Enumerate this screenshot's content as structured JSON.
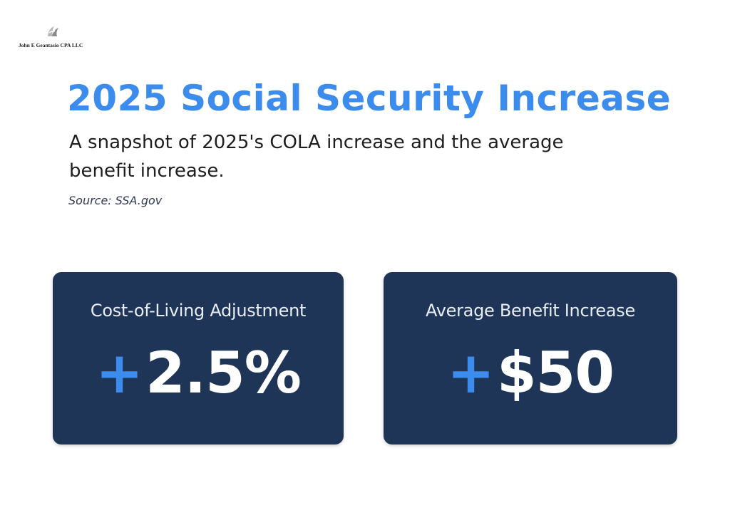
{
  "brand": {
    "name": "John E Geantasio CPA LLC",
    "logo_icon": "firm-logo-icon"
  },
  "header": {
    "title": "2025 Social Security Increase",
    "subtitle": "A snapshot of 2025's COLA increase and the average benefit increase.",
    "source": "Source: SSA.gov"
  },
  "cards": [
    {
      "label": "Cost-of-Living Adjustment",
      "sign": "+",
      "value": "2.5%"
    },
    {
      "label": "Average Benefit Increase",
      "sign": "+",
      "value": "$50"
    }
  ],
  "colors": {
    "title": "#3b8ced",
    "card_bg": "#1f3558",
    "accent_sign": "#3b8ced",
    "value_text": "#ffffff"
  }
}
